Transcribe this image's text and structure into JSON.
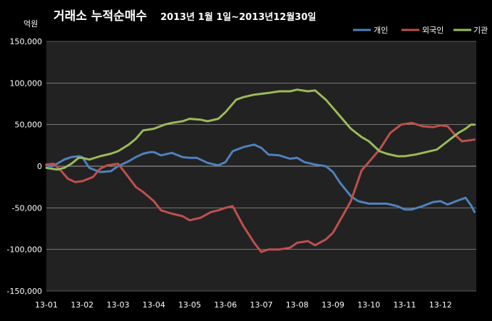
{
  "chart_data": {
    "type": "line",
    "title": "거래소 누적순매수",
    "subtitle": "2013년 1월 1일~2013년12월30일",
    "ylabel": "억원",
    "xlabel": "",
    "ylim": [
      -150000,
      150000
    ],
    "yticks": [
      150000,
      100000,
      50000,
      0,
      -50000,
      -100000,
      -150000
    ],
    "ytick_labels": [
      "150,000",
      "100,000",
      "50,000",
      "0",
      "-50,000",
      "-100,000",
      "-150,000"
    ],
    "xtick_labels": [
      "13-01",
      "13-02",
      "13-03",
      "13-04",
      "13-05",
      "13-06",
      "13-07",
      "13-08",
      "13-09",
      "13-10",
      "13-11",
      "13-12"
    ],
    "grid": true,
    "legend_position": "top-right",
    "series": [
      {
        "name": "개인",
        "color": "#4f81bd",
        "x": [
          0,
          0.15,
          0.3,
          0.5,
          0.7,
          0.9,
          1.0,
          1.2,
          1.5,
          1.8,
          2.0,
          2.3,
          2.5,
          2.7,
          2.9,
          3.0,
          3.2,
          3.5,
          3.8,
          4.0,
          4.2,
          4.5,
          4.8,
          5.0,
          5.2,
          5.5,
          5.8,
          6.0,
          6.2,
          6.5,
          6.8,
          7.0,
          7.2,
          7.5,
          7.8,
          8.0,
          8.2,
          8.5,
          8.7,
          8.9,
          9.0,
          9.2,
          9.5,
          9.8,
          10.0,
          10.2,
          10.5,
          10.8,
          11.0,
          11.2,
          11.5,
          11.7,
          11.85,
          11.95
        ],
        "values": [
          1000,
          0,
          3000,
          8000,
          11000,
          12000,
          11000,
          -2000,
          -7000,
          -6000,
          0,
          6000,
          11000,
          15000,
          17000,
          17000,
          13000,
          16000,
          11000,
          10000,
          10000,
          4000,
          1000,
          5000,
          18000,
          23000,
          26000,
          22000,
          14000,
          13000,
          9000,
          10000,
          5000,
          2000,
          0,
          -7000,
          -20000,
          -36000,
          -42000,
          -44000,
          -45000,
          -45000,
          -45000,
          -48000,
          -52000,
          -52000,
          -48000,
          -43000,
          -42000,
          -46000,
          -41000,
          -38000,
          -47000,
          -55000
        ]
      },
      {
        "name": "외국인",
        "color": "#c0504d",
        "x": [
          0,
          0.2,
          0.4,
          0.6,
          0.8,
          1.0,
          1.3,
          1.5,
          1.7,
          2.0,
          2.2,
          2.5,
          2.7,
          3.0,
          3.2,
          3.5,
          3.8,
          4.0,
          4.3,
          4.6,
          4.8,
          5.0,
          5.2,
          5.5,
          5.8,
          6.0,
          6.2,
          6.5,
          6.8,
          7.0,
          7.3,
          7.5,
          7.8,
          8.0,
          8.2,
          8.5,
          8.8,
          9.0,
          9.3,
          9.6,
          9.9,
          10.2,
          10.5,
          10.8,
          11.0,
          11.2,
          11.4,
          11.6,
          11.8,
          11.95
        ],
        "values": [
          2000,
          3000,
          -5000,
          -15000,
          -19000,
          -18000,
          -13000,
          -3000,
          1000,
          3000,
          -8000,
          -25000,
          -31000,
          -42000,
          -53000,
          -57000,
          -60000,
          -65000,
          -62000,
          -55000,
          -53000,
          -50000,
          -48000,
          -72000,
          -92000,
          -103000,
          -100000,
          -100000,
          -98000,
          -92000,
          -90000,
          -95000,
          -88000,
          -80000,
          -65000,
          -42000,
          -5000,
          5000,
          20000,
          40000,
          50000,
          52000,
          48000,
          47000,
          49000,
          48000,
          38000,
          30000,
          31000,
          32000
        ]
      },
      {
        "name": "기관",
        "color": "#9bbb59",
        "x": [
          0,
          0.15,
          0.3,
          0.5,
          0.7,
          0.9,
          1.0,
          1.2,
          1.5,
          1.8,
          2.0,
          2.3,
          2.5,
          2.7,
          3.0,
          3.3,
          3.5,
          3.8,
          4.0,
          4.3,
          4.5,
          4.8,
          5.0,
          5.3,
          5.5,
          5.8,
          6.0,
          6.2,
          6.5,
          6.8,
          7.0,
          7.3,
          7.5,
          7.8,
          8.0,
          8.2,
          8.5,
          8.8,
          9.0,
          9.3,
          9.5,
          9.8,
          10.0,
          10.3,
          10.6,
          10.9,
          11.2,
          11.5,
          11.7,
          11.85,
          11.95
        ],
        "values": [
          -2000,
          -3000,
          -4000,
          -2000,
          3000,
          10000,
          10000,
          8000,
          12000,
          15000,
          18000,
          26000,
          33000,
          43000,
          45000,
          50000,
          52000,
          54000,
          57000,
          56000,
          54000,
          57000,
          65000,
          80000,
          83000,
          86000,
          87000,
          88000,
          90000,
          90000,
          92000,
          90000,
          91000,
          80000,
          70000,
          60000,
          45000,
          35000,
          30000,
          18000,
          15000,
          12000,
          12000,
          14000,
          17000,
          20000,
          30000,
          40000,
          45000,
          50000,
          50000
        ]
      }
    ]
  }
}
